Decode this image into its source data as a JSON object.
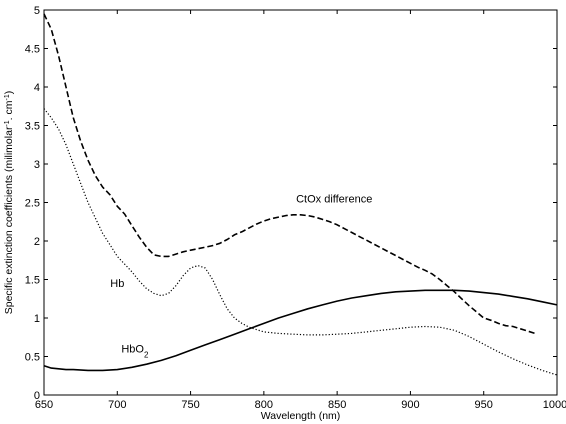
{
  "chart_data": {
    "type": "line",
    "xlabel": "Wavelength (nm)",
    "ylabel_parts": {
      "main": "Specific extinction coefficients (milimolar",
      "sup1": "-1",
      "mid": ". cm",
      "sup2": "-1",
      "end": ")"
    },
    "xlim": [
      650,
      1000
    ],
    "ylim": [
      0,
      5
    ],
    "xticks": [
      650,
      700,
      750,
      800,
      850,
      900,
      950,
      1000
    ],
    "yticks": [
      0,
      0.5,
      1,
      1.5,
      2,
      2.5,
      3,
      3.5,
      4,
      4.5,
      5
    ],
    "yticklabels": [
      "0",
      "0.5",
      "1",
      "1.5",
      "2",
      "2.5",
      "3",
      "3.5",
      "4",
      "4.5",
      "5"
    ],
    "grid": false,
    "series": [
      {
        "name": "CtOx difference",
        "style": "dashed",
        "x": [
          650,
          655,
          660,
          665,
          670,
          675,
          680,
          685,
          690,
          695,
          700,
          705,
          710,
          715,
          720,
          725,
          730,
          735,
          740,
          745,
          750,
          755,
          760,
          765,
          770,
          775,
          780,
          785,
          790,
          795,
          800,
          805,
          810,
          815,
          820,
          825,
          830,
          835,
          840,
          845,
          850,
          855,
          860,
          865,
          870,
          875,
          880,
          885,
          890,
          895,
          900,
          905,
          910,
          915,
          920,
          925,
          930,
          935,
          940,
          945,
          950,
          955,
          960,
          965,
          970,
          975,
          980,
          985
        ],
        "y": [
          4.95,
          4.75,
          4.4,
          4.0,
          3.6,
          3.3,
          3.05,
          2.85,
          2.7,
          2.6,
          2.45,
          2.35,
          2.2,
          2.05,
          1.92,
          1.82,
          1.8,
          1.8,
          1.83,
          1.86,
          1.88,
          1.9,
          1.92,
          1.94,
          1.97,
          2.02,
          2.08,
          2.12,
          2.17,
          2.22,
          2.26,
          2.29,
          2.31,
          2.33,
          2.34,
          2.34,
          2.33,
          2.31,
          2.28,
          2.25,
          2.21,
          2.16,
          2.11,
          2.06,
          2.01,
          1.96,
          1.91,
          1.86,
          1.81,
          1.76,
          1.71,
          1.66,
          1.62,
          1.57,
          1.5,
          1.42,
          1.34,
          1.25,
          1.16,
          1.08,
          1.0,
          0.97,
          0.93,
          0.9,
          0.89,
          0.86,
          0.83,
          0.8
        ]
      },
      {
        "name": "Hb",
        "style": "dotted",
        "x": [
          650,
          655,
          660,
          665,
          670,
          675,
          680,
          685,
          690,
          695,
          700,
          705,
          710,
          715,
          720,
          725,
          730,
          735,
          740,
          745,
          750,
          755,
          760,
          765,
          770,
          775,
          780,
          785,
          790,
          795,
          800,
          810,
          820,
          830,
          840,
          850,
          860,
          870,
          880,
          890,
          900,
          910,
          920,
          930,
          940,
          950,
          960,
          970,
          980,
          990,
          1000
        ],
        "y": [
          3.72,
          3.6,
          3.45,
          3.25,
          3.0,
          2.75,
          2.5,
          2.3,
          2.1,
          1.95,
          1.8,
          1.7,
          1.6,
          1.48,
          1.38,
          1.32,
          1.29,
          1.32,
          1.42,
          1.55,
          1.65,
          1.68,
          1.65,
          1.5,
          1.3,
          1.12,
          1.0,
          0.93,
          0.88,
          0.85,
          0.82,
          0.8,
          0.79,
          0.78,
          0.78,
          0.79,
          0.8,
          0.82,
          0.84,
          0.86,
          0.88,
          0.89,
          0.88,
          0.84,
          0.76,
          0.66,
          0.56,
          0.47,
          0.39,
          0.32,
          0.26
        ]
      },
      {
        "name": "HbO2",
        "style": "solid",
        "x": [
          650,
          655,
          660,
          665,
          670,
          680,
          690,
          700,
          710,
          720,
          730,
          740,
          750,
          760,
          770,
          780,
          790,
          800,
          810,
          820,
          830,
          840,
          850,
          860,
          870,
          880,
          890,
          900,
          910,
          920,
          930,
          940,
          950,
          960,
          970,
          980,
          990,
          1000
        ],
        "y": [
          0.38,
          0.35,
          0.34,
          0.33,
          0.33,
          0.32,
          0.32,
          0.33,
          0.36,
          0.4,
          0.45,
          0.51,
          0.58,
          0.65,
          0.72,
          0.79,
          0.86,
          0.93,
          1.0,
          1.06,
          1.12,
          1.17,
          1.22,
          1.26,
          1.29,
          1.32,
          1.34,
          1.35,
          1.36,
          1.36,
          1.36,
          1.35,
          1.33,
          1.31,
          1.28,
          1.25,
          1.21,
          1.17
        ]
      }
    ],
    "annotations": [
      {
        "text": "CtOx difference",
        "x": 848,
        "y": 2.5,
        "anchor": "middle"
      },
      {
        "text": "Hb",
        "x": 700,
        "y": 1.4,
        "anchor": "middle"
      },
      {
        "text": "HbO",
        "sub": "2",
        "x": 712,
        "y": 0.55,
        "anchor": "middle"
      }
    ]
  }
}
